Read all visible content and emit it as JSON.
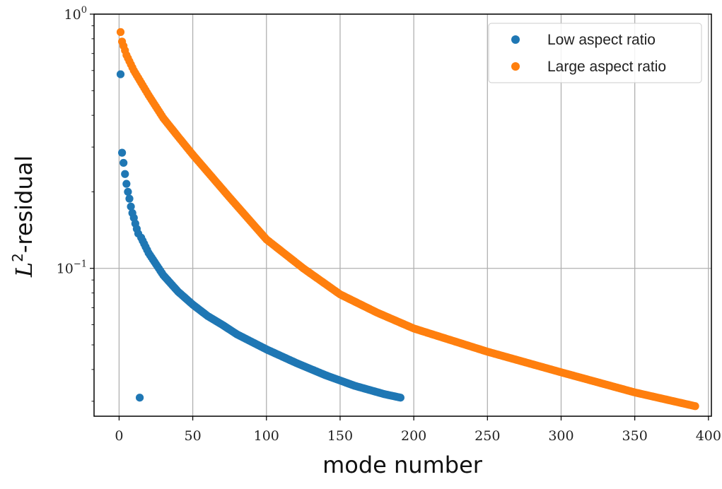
{
  "chart_data": {
    "type": "scatter",
    "xlabel": "mode number",
    "ylabel": "-residual",
    "ylabel_math": "L",
    "ylabel_sup": "2",
    "xlim": [
      -17,
      402
    ],
    "ylim": [
      0.0262,
      1.0
    ],
    "yscale": "log",
    "grid": true,
    "legend_position": "top-right",
    "x_ticks": [
      0,
      50,
      100,
      150,
      200,
      250,
      300,
      350,
      400
    ],
    "y_ticks": [
      {
        "value": 1.0,
        "base": "10",
        "exp": "0"
      },
      {
        "value": 0.1,
        "base": "10",
        "exp": "−1"
      }
    ],
    "series": [
      {
        "name": "Low aspect ratio",
        "color": "#1f77b4",
        "x_start": 1,
        "x_end": 191,
        "first_values": [
          0.58,
          0.285,
          0.26,
          0.235,
          0.215,
          0.2,
          0.188,
          0.175,
          0.165,
          0.158,
          0.15,
          0.143,
          0.137
        ],
        "anchors": [
          [
            15,
            0.132
          ],
          [
            20,
            0.115
          ],
          [
            30,
            0.094
          ],
          [
            40,
            0.081
          ],
          [
            50,
            0.072
          ],
          [
            60,
            0.065
          ],
          [
            70,
            0.06
          ],
          [
            80,
            0.055
          ],
          [
            100,
            0.048
          ],
          [
            120,
            0.0425
          ],
          [
            140,
            0.038
          ],
          [
            160,
            0.0345
          ],
          [
            180,
            0.032
          ],
          [
            191,
            0.031
          ]
        ]
      },
      {
        "name": "Large aspect ratio",
        "color": "#ff7f0e",
        "x_start": 1,
        "x_end": 391,
        "first_values": [
          0.85,
          0.78,
          0.75,
          0.72
        ],
        "anchors": [
          [
            5,
            0.69
          ],
          [
            10,
            0.6
          ],
          [
            20,
            0.48
          ],
          [
            30,
            0.39
          ],
          [
            40,
            0.33
          ],
          [
            50,
            0.28
          ],
          [
            75,
            0.19
          ],
          [
            100,
            0.13
          ],
          [
            125,
            0.1
          ],
          [
            150,
            0.079
          ],
          [
            175,
            0.067
          ],
          [
            200,
            0.058
          ],
          [
            250,
            0.047
          ],
          [
            300,
            0.039
          ],
          [
            350,
            0.0325
          ],
          [
            391,
            0.0287
          ]
        ]
      }
    ]
  }
}
